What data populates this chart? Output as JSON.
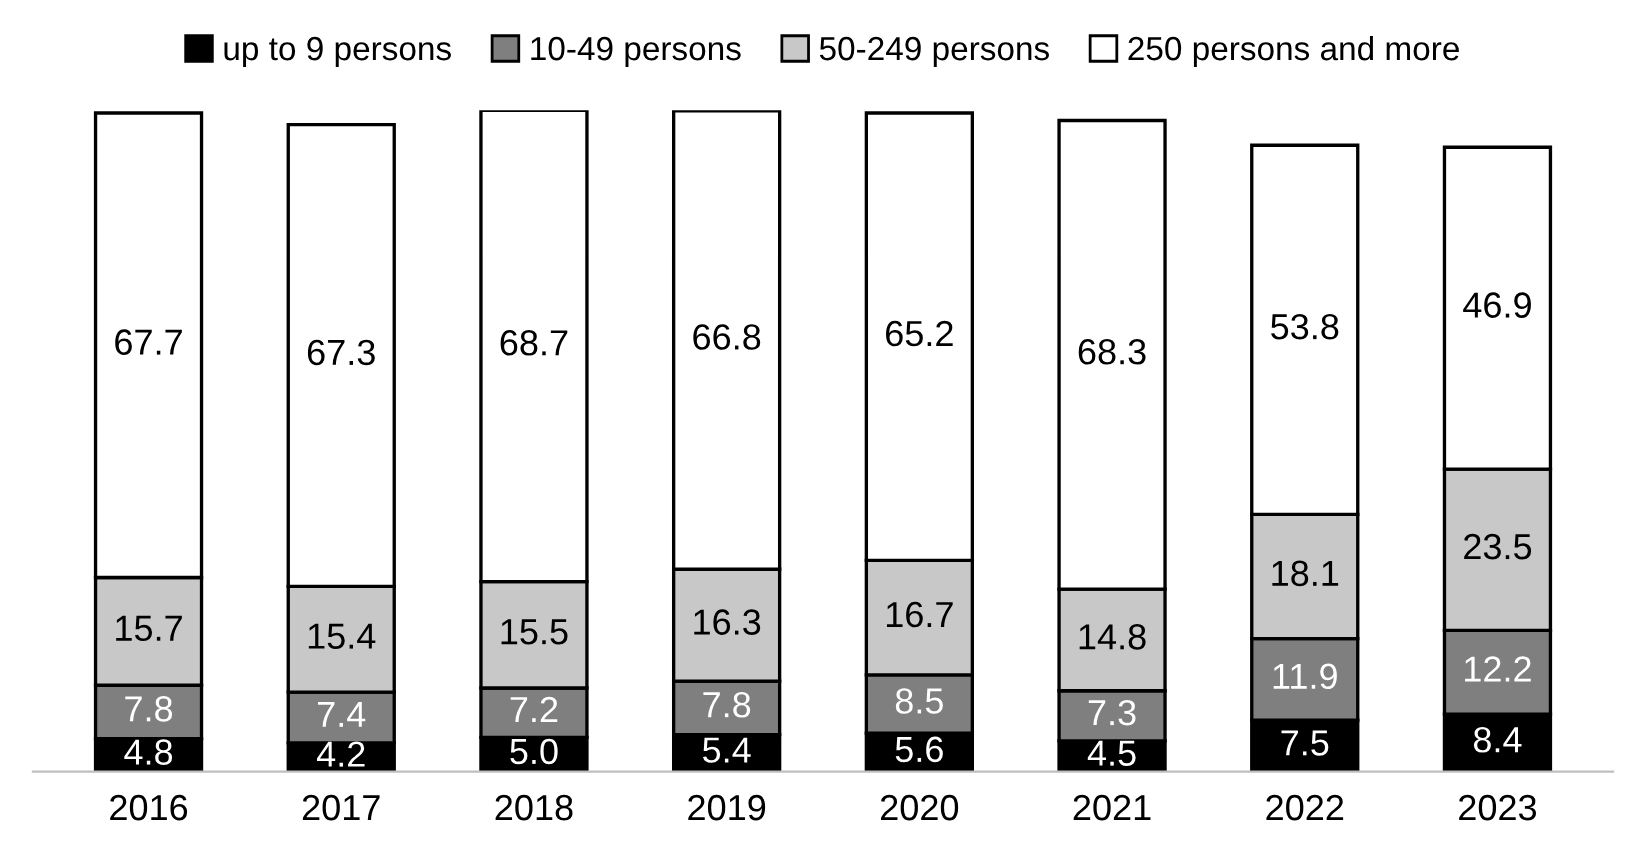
{
  "chart_data": {
    "type": "bar",
    "stacked": true,
    "legend": "top",
    "grid": false,
    "tick_labels": "x",
    "categories": [
      "2016",
      "2017",
      "2018",
      "2019",
      "2020",
      "2021",
      "2022",
      "2023"
    ],
    "series": [
      {
        "name": "up to 9 persons",
        "color": "#000000",
        "values": [
          4.8,
          4.2,
          5.0,
          5.4,
          5.6,
          4.5,
          7.5,
          8.4
        ],
        "value_labels": [
          "4.8",
          "4.2",
          "5.0",
          "5.4",
          "5.6",
          "4.5",
          "7.5",
          "8.4"
        ]
      },
      {
        "name": "10-49 persons",
        "color": "#7f7f7f",
        "values": [
          7.8,
          7.4,
          7.2,
          7.8,
          8.5,
          7.3,
          11.9,
          12.2
        ],
        "value_labels": [
          "7.8",
          "7.4",
          "7.2",
          "7.8",
          "8.5",
          "7.3",
          "11.9",
          "12.2"
        ]
      },
      {
        "name": "50-249 persons",
        "color": "#c8c8c8",
        "values": [
          15.7,
          15.4,
          15.5,
          16.3,
          16.7,
          14.8,
          18.1,
          23.5
        ],
        "value_labels": [
          "15.7",
          "15.4",
          "15.5",
          "16.3",
          "16.7",
          "14.8",
          "18.1",
          "23.5"
        ]
      },
      {
        "name": "250 persons and more",
        "color": "#ffffff",
        "values": [
          67.7,
          67.3,
          68.7,
          66.8,
          65.2,
          68.3,
          53.8,
          46.9
        ],
        "value_labels": [
          "67.7",
          "67.3",
          "68.7",
          "66.8",
          "65.2",
          "68.3",
          "53.8",
          "46.9"
        ]
      }
    ]
  }
}
